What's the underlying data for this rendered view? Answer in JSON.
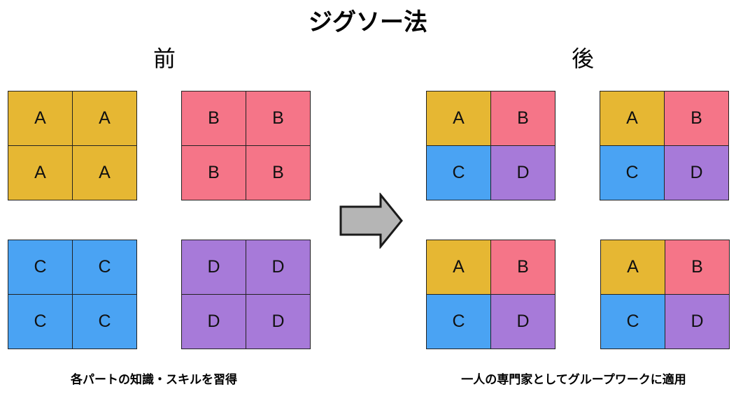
{
  "title": "ジグソー法",
  "before": {
    "heading": "前",
    "caption": "各パートの知識・スキルを習得",
    "groups": [
      [
        "A",
        "A",
        "A",
        "A"
      ],
      [
        "B",
        "B",
        "B",
        "B"
      ],
      [
        "C",
        "C",
        "C",
        "C"
      ],
      [
        "D",
        "D",
        "D",
        "D"
      ]
    ]
  },
  "after": {
    "heading": "後",
    "caption": "一人の専門家としてグループワークに適用",
    "groups": [
      [
        "A",
        "B",
        "C",
        "D"
      ],
      [
        "A",
        "B",
        "C",
        "D"
      ],
      [
        "A",
        "B",
        "C",
        "D"
      ],
      [
        "A",
        "B",
        "C",
        "D"
      ]
    ]
  },
  "colors": {
    "A": "#e6b733",
    "B": "#f57588",
    "C": "#4aa3f3",
    "D": "#a77ad9",
    "arrow_fill": "#b5b5b5",
    "arrow_stroke": "#1a1a1a"
  }
}
